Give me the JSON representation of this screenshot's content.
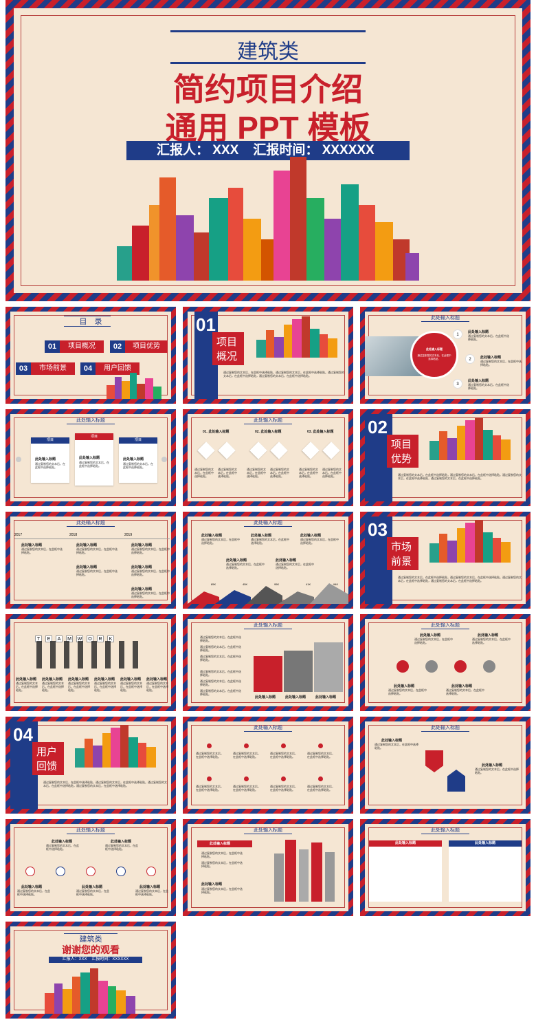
{
  "colors": {
    "red": "#c8202b",
    "blue": "#1f3c88",
    "cream": "#f5e6d3"
  },
  "cover": {
    "category": "建筑类",
    "title_line1": "简约项目介绍",
    "title_line2": "通用 PPT 模板",
    "reporter": "汇报人： XXX    汇报时间： XXXXXX"
  },
  "toc": {
    "title": "目　录",
    "items": [
      {
        "num": "01",
        "label": "项目概况"
      },
      {
        "num": "02",
        "label": "项目优势"
      },
      {
        "num": "03",
        "label": "市场前景"
      },
      {
        "num": "04",
        "label": "用户回馈"
      }
    ]
  },
  "placeholder_title": "此处输入标题",
  "placeholder_head": "此处输入标题",
  "placeholder_text": "通过复制您的文本后，在此框中选择粘贴。",
  "long_text": "通过复制您的文本后，在此框中选择粘贴，通过复制您的文本后，在此框中选择粘贴。通过复制您的文本后，在此框中选择粘贴，通过复制您的文本后，在此框中选择粘贴。",
  "sections": [
    {
      "num": "01",
      "line1": "项目",
      "line2": "概况"
    },
    {
      "num": "02",
      "line1": "项目",
      "line2": "优势"
    },
    {
      "num": "03",
      "line1": "市场",
      "line2": "前景"
    },
    {
      "num": "04",
      "line1": "用户",
      "line2": "回馈"
    }
  ],
  "circles": [
    "1",
    "2",
    "3"
  ],
  "tabs": [
    "项目",
    "项目",
    "项目"
  ],
  "steps": [
    "01. 此处输入标题",
    "02. 此处输入标题",
    "03. 此处输入标题"
  ],
  "years": [
    "2017",
    "2018",
    "2019"
  ],
  "mountains": [
    "85K",
    "45K",
    "95K",
    "41K",
    "94K"
  ],
  "teamwork": [
    "T",
    "E",
    "A",
    "M",
    "W",
    "O",
    "R",
    "K"
  ],
  "ending": {
    "category": "建筑类",
    "thanks": "谢谢您的观看",
    "reporter": "汇报人：XXX    汇报时间：XXXXXX"
  }
}
